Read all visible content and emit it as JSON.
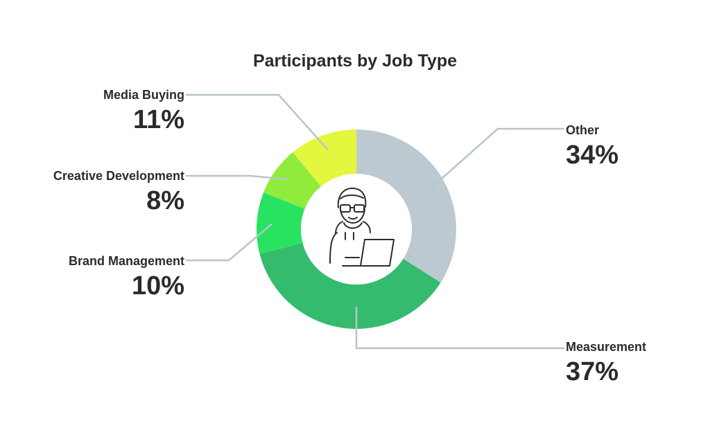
{
  "chart_data": {
    "type": "pie",
    "title": "Participants by Job Type",
    "categories": [
      "Other",
      "Measurement",
      "Brand Management",
      "Creative Development",
      "Media Buying"
    ],
    "values": [
      34,
      37,
      10,
      8,
      11
    ],
    "value_labels": [
      "34%",
      "37%",
      "10%",
      "8%",
      "11%"
    ],
    "colors": [
      "#bcc9d1",
      "#35bb6e",
      "#27e35f",
      "#8fec3c",
      "#e3f73f"
    ],
    "donut": true,
    "center_icon": "person-with-laptop-icon",
    "leader_line_color": "#b7c4cc"
  }
}
